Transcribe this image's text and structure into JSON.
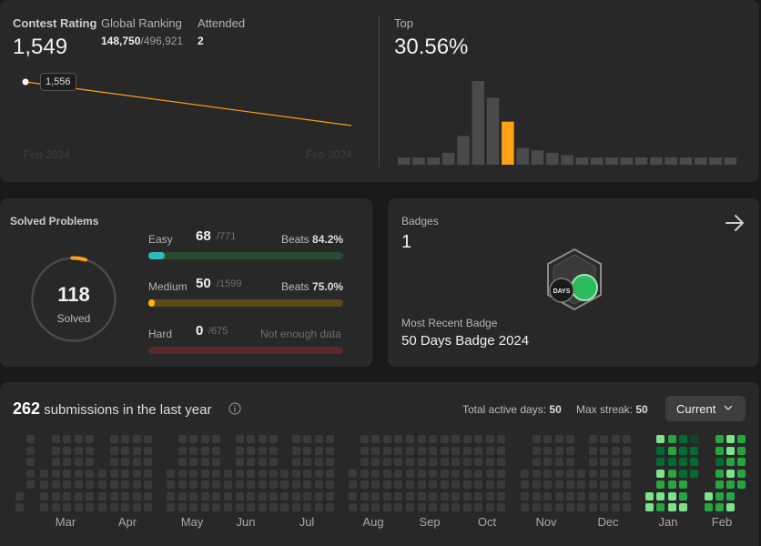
{
  "contest": {
    "rating_label": "Contest Rating",
    "rating": "1,549",
    "ranking_label": "Global Ranking",
    "ranking_value": "148,750",
    "ranking_total": "/496,921",
    "attended_label": "Attended",
    "attended": "2",
    "tooltip": "1,556",
    "x_start": "Feb 2024",
    "x_end": "Feb 2024",
    "line_points": [
      1556,
      1549
    ]
  },
  "top": {
    "label": "Top",
    "value": "30.56%",
    "histogram": [
      3,
      3,
      3,
      5,
      12,
      35,
      28,
      18,
      7,
      6,
      5,
      4,
      3,
      3,
      3,
      3,
      3,
      3,
      3,
      3,
      3,
      3,
      3
    ],
    "highlight_index": 7
  },
  "solved": {
    "title": "Solved Problems",
    "count": "118",
    "count_label": "Solved",
    "rows": [
      {
        "label": "Easy",
        "value": "68",
        "total": "/771",
        "beats_label": "Beats",
        "beats": "84.2%",
        "fraction": 0.088
      },
      {
        "label": "Medium",
        "value": "50",
        "total": "/1599",
        "beats_label": "Beats",
        "beats": "75.0%",
        "fraction": 0.031
      },
      {
        "label": "Hard",
        "value": "0",
        "total": "/675",
        "note": "Not enough data",
        "fraction": 0
      }
    ]
  },
  "badges": {
    "title": "Badges",
    "count": "1",
    "recent_label": "Most Recent Badge",
    "recent_name": "50 Days Badge 2024",
    "badge_text": "DAYS"
  },
  "submissions": {
    "count": "262",
    "text": "submissions in the last year",
    "active_label": "Total active days:",
    "active_value": "50",
    "streak_label": "Max streak:",
    "streak_value": "50",
    "dropdown": "Current",
    "months": [
      "Mar",
      "Apr",
      "May",
      "Jun",
      "Jul",
      "Aug",
      "Sep",
      "Oct",
      "Nov",
      "Dec",
      "Jan",
      "Feb"
    ]
  },
  "colors": {
    "easy": "#2cbb5d",
    "easy_track": "#2a4a33",
    "medium": "#ffb800",
    "medium_track": "#5a4a1a",
    "hard_track": "#5a2a2a",
    "accent": "#ffa116"
  }
}
